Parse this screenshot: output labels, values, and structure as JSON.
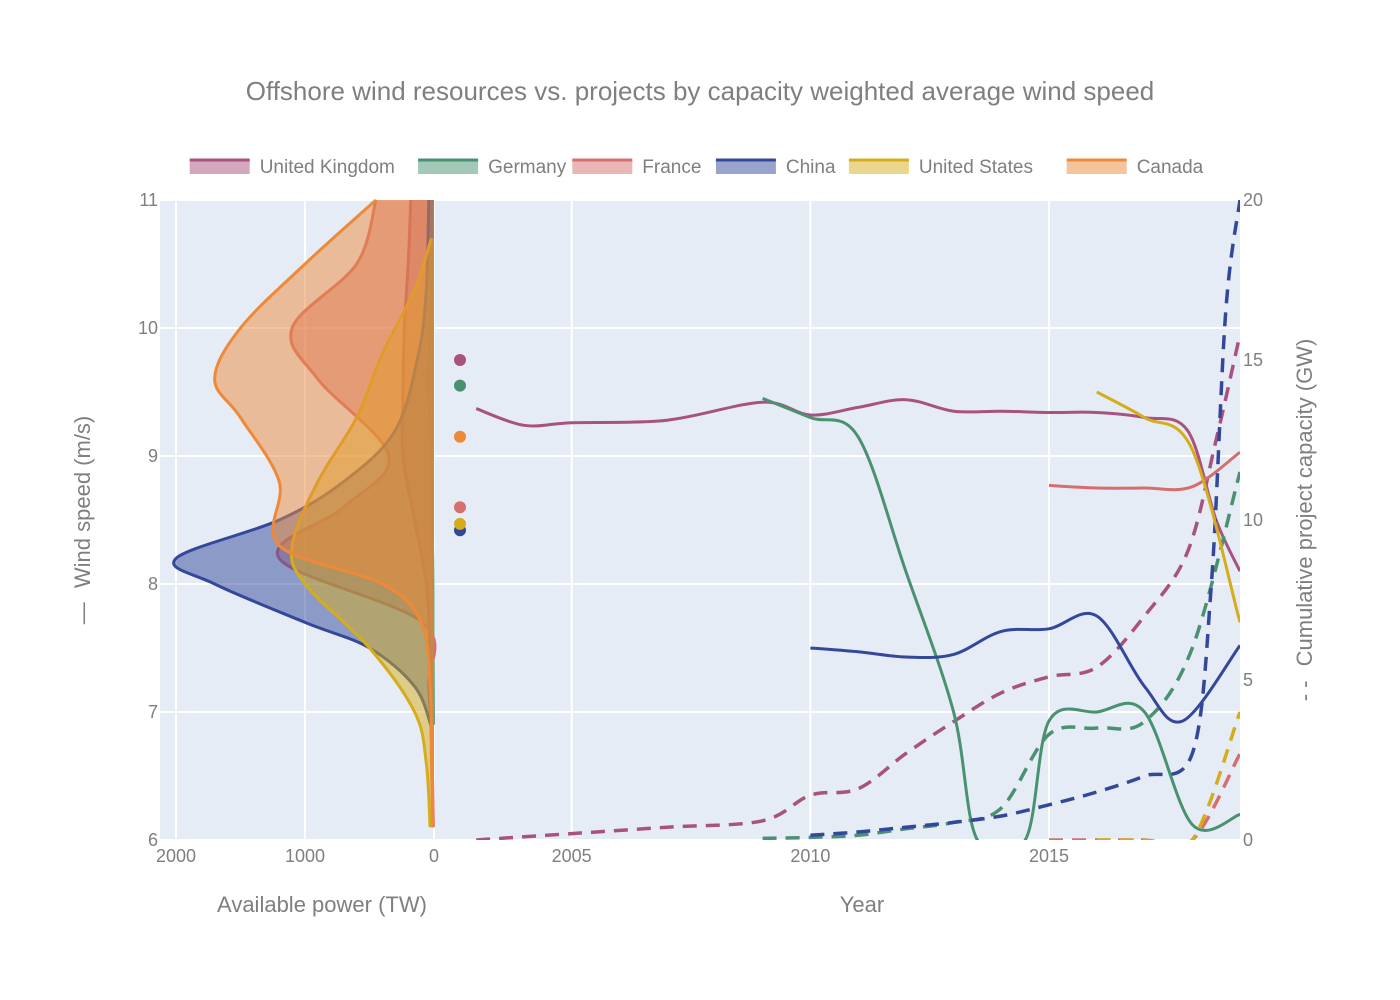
{
  "chart_data": {
    "type": "line",
    "title": "Offshore wind resources vs. projects by capacity weighted average wind speed",
    "legend_position": "top",
    "colors": {
      "United Kingdom": "#a8527f",
      "Germany": "#4a9171",
      "France": "#d66e6e",
      "China": "#33489a",
      "United States": "#d5ad1c",
      "Canada": "#ed8a3a"
    },
    "left_y_axis": {
      "label": "Wind speed (m/s)",
      "line_marker": "—",
      "range": [
        6,
        11
      ],
      "ticks": [
        "6",
        "7",
        "8",
        "9",
        "10",
        "11"
      ]
    },
    "right_y_axis": {
      "label": "Cumulative project capacity (GW)",
      "line_marker": "- -",
      "range": [
        0,
        20
      ],
      "ticks": [
        "0",
        "5",
        "10",
        "15",
        "20"
      ]
    },
    "left_x_axis": {
      "label": "Available power (TW)",
      "range": [
        2000,
        0
      ],
      "ticks": [
        "2000",
        "1000",
        "0"
      ]
    },
    "main_x_axis": {
      "label": "Year",
      "range": [
        2002.2,
        2019
      ],
      "ticks": [
        "2005",
        "2010",
        "2015"
      ]
    },
    "series": [
      {
        "name": "United Kingdom",
        "resource_density": [
          [
            6.1,
            10
          ],
          [
            6.5,
            12
          ],
          [
            7.0,
            18
          ],
          [
            7.5,
            30
          ],
          [
            8.0,
            60
          ],
          [
            8.5,
            150
          ],
          [
            9.0,
            240
          ],
          [
            9.5,
            240
          ],
          [
            10.0,
            230
          ],
          [
            10.5,
            200
          ],
          [
            11.0,
            180
          ]
        ],
        "resource_average_wind_speed": 9.75,
        "wind_speed": [
          [
            2003.0,
            9.37
          ],
          [
            2004.0,
            9.24
          ],
          [
            2005.0,
            9.26
          ],
          [
            2007.0,
            9.28
          ],
          [
            2009.0,
            9.42
          ],
          [
            2010.0,
            9.32
          ],
          [
            2011.0,
            9.38
          ],
          [
            2012.0,
            9.44
          ],
          [
            2013.0,
            9.35
          ],
          [
            2014.0,
            9.35
          ],
          [
            2015.0,
            9.34
          ],
          [
            2016.0,
            9.34
          ],
          [
            2017.0,
            9.3
          ],
          [
            2017.9,
            9.2
          ],
          [
            2018.5,
            8.5
          ],
          [
            2019.0,
            8.1
          ]
        ],
        "cumulative_capacity_gw": [
          [
            2003.0,
            0.0
          ],
          [
            2005.0,
            0.2
          ],
          [
            2007.0,
            0.4
          ],
          [
            2009.0,
            0.6
          ],
          [
            2010.0,
            1.4
          ],
          [
            2011.0,
            1.6
          ],
          [
            2012.0,
            2.7
          ],
          [
            2013.0,
            3.7
          ],
          [
            2014.0,
            4.6
          ],
          [
            2015.0,
            5.1
          ],
          [
            2016.0,
            5.4
          ],
          [
            2017.0,
            7.0
          ],
          [
            2017.9,
            9.0
          ],
          [
            2018.5,
            12.5
          ],
          [
            2019.0,
            15.8
          ]
        ]
      },
      {
        "name": "Germany",
        "resource_density": [
          [
            6.9,
            5
          ],
          [
            7.6,
            8
          ],
          [
            8.2,
            10
          ],
          [
            9.0,
            25
          ],
          [
            9.6,
            40
          ],
          [
            10.2,
            25
          ],
          [
            11.0,
            20
          ]
        ],
        "resource_average_wind_speed": 9.55,
        "wind_speed": [
          [
            2009.0,
            9.45
          ],
          [
            2010.0,
            9.3
          ],
          [
            2011.0,
            9.15
          ],
          [
            2012.0,
            8.1
          ],
          [
            2013.0,
            7.0
          ],
          [
            2013.5,
            6.0
          ],
          [
            2014.5,
            6.0
          ],
          [
            2015.0,
            6.93
          ],
          [
            2016.0,
            7.0
          ],
          [
            2017.0,
            7.0
          ],
          [
            2018.0,
            6.12
          ],
          [
            2019.0,
            6.2
          ]
        ],
        "cumulative_capacity_gw": [
          [
            2009.0,
            0.05
          ],
          [
            2010.0,
            0.08
          ],
          [
            2011.0,
            0.15
          ],
          [
            2012.0,
            0.35
          ],
          [
            2013.0,
            0.55
          ],
          [
            2014.0,
            1.0
          ],
          [
            2015.0,
            3.3
          ],
          [
            2016.0,
            3.5
          ],
          [
            2017.0,
            3.7
          ],
          [
            2018.0,
            6.0
          ],
          [
            2019.0,
            11.5
          ]
        ]
      },
      {
        "name": "France",
        "resource_density": [
          [
            6.1,
            5
          ],
          [
            6.6,
            15
          ],
          [
            7.2,
            40
          ],
          [
            7.7,
            90
          ],
          [
            8.2,
            1200
          ],
          [
            8.6,
            700
          ],
          [
            9.0,
            350
          ],
          [
            9.6,
            900
          ],
          [
            10.0,
            1100
          ],
          [
            10.5,
            600
          ],
          [
            11.0,
            450
          ]
        ],
        "resource_average_wind_speed": 8.6,
        "wind_speed": [
          [
            2015.0,
            8.77
          ],
          [
            2016.0,
            8.75
          ],
          [
            2017.0,
            8.75
          ],
          [
            2018.0,
            8.76
          ],
          [
            2019.0,
            9.03
          ]
        ],
        "cumulative_capacity_gw": [
          [
            2015.0,
            0.0
          ],
          [
            2016.0,
            0.0
          ],
          [
            2017.0,
            0.0
          ],
          [
            2018.0,
            0.0
          ],
          [
            2019.0,
            2.7
          ]
        ]
      },
      {
        "name": "China",
        "resource_density": [
          [
            6.9,
            25
          ],
          [
            7.2,
            150
          ],
          [
            7.5,
            500
          ],
          [
            7.7,
            1000
          ],
          [
            8.0,
            1700
          ],
          [
            8.2,
            2000
          ],
          [
            8.5,
            1200
          ],
          [
            8.8,
            700
          ],
          [
            9.2,
            300
          ],
          [
            9.8,
            120
          ],
          [
            10.3,
            60
          ],
          [
            11.0,
            40
          ]
        ],
        "resource_average_wind_speed": 8.42,
        "wind_speed": [
          [
            2010.0,
            7.5
          ],
          [
            2011.0,
            7.47
          ],
          [
            2012.0,
            7.43
          ],
          [
            2013.0,
            7.45
          ],
          [
            2014.0,
            7.63
          ],
          [
            2015.0,
            7.65
          ],
          [
            2016.0,
            7.75
          ],
          [
            2017.0,
            7.2
          ],
          [
            2017.8,
            6.93
          ],
          [
            2019.0,
            7.52
          ]
        ],
        "cumulative_capacity_gw": [
          [
            2010.0,
            0.15
          ],
          [
            2011.0,
            0.25
          ],
          [
            2012.0,
            0.4
          ],
          [
            2013.0,
            0.55
          ],
          [
            2014.0,
            0.75
          ],
          [
            2015.0,
            1.1
          ],
          [
            2016.0,
            1.5
          ],
          [
            2017.0,
            2.0
          ],
          [
            2018.0,
            2.7
          ],
          [
            2018.4,
            8.0
          ],
          [
            2018.7,
            16.5
          ],
          [
            2019.0,
            20.0
          ]
        ]
      },
      {
        "name": "United States",
        "resource_density": [
          [
            6.1,
            30
          ],
          [
            6.6,
            60
          ],
          [
            7.0,
            150
          ],
          [
            7.5,
            500
          ],
          [
            8.0,
            1000
          ],
          [
            8.3,
            1100
          ],
          [
            8.8,
            900
          ],
          [
            9.3,
            600
          ],
          [
            9.8,
            400
          ],
          [
            10.3,
            150
          ],
          [
            10.7,
            20
          ]
        ],
        "resource_average_wind_speed": 8.47,
        "wind_speed": [
          [
            2016.0,
            9.5
          ],
          [
            2017.0,
            9.3
          ],
          [
            2018.0,
            9.05
          ],
          [
            2019.0,
            7.7
          ]
        ],
        "cumulative_capacity_gw": [
          [
            2016.0,
            0.0
          ],
          [
            2017.0,
            0.0
          ],
          [
            2018.0,
            0.0
          ],
          [
            2019.0,
            4.0
          ]
        ]
      },
      {
        "name": "Canada",
        "resource_density": [
          [
            6.1,
            10
          ],
          [
            6.6,
            20
          ],
          [
            7.2,
            30
          ],
          [
            7.7,
            100
          ],
          [
            8.0,
            400
          ],
          [
            8.3,
            1200
          ],
          [
            8.8,
            1200
          ],
          [
            9.3,
            1500
          ],
          [
            9.6,
            1700
          ],
          [
            10.0,
            1500
          ],
          [
            10.5,
            1000
          ],
          [
            11.0,
            450
          ]
        ],
        "resource_average_wind_speed": 9.15,
        "wind_speed": [],
        "cumulative_capacity_gw": []
      }
    ]
  }
}
